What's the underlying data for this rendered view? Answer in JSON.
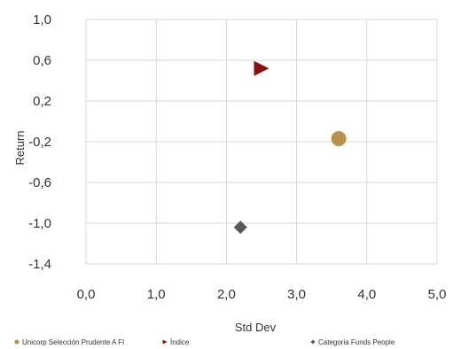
{
  "chart_data": {
    "type": "scatter",
    "xlabel": "Std Dev",
    "ylabel": "Return",
    "xlim": [
      0,
      5
    ],
    "ylim": [
      -1.4,
      1.0
    ],
    "x_ticks": [
      "0,0",
      "1,0",
      "2,0",
      "3,0",
      "4,0",
      "5,0"
    ],
    "x_tick_values": [
      0,
      1,
      2,
      3,
      4,
      5
    ],
    "y_ticks": [
      "1,0",
      "0,6",
      "0,2",
      "-0,2",
      "-0,6",
      "-1,0",
      "-1,4"
    ],
    "y_tick_values": [
      1.0,
      0.6,
      0.2,
      -0.2,
      -0.6,
      -1.0,
      -1.4
    ],
    "grid": true,
    "legend_position": "bottom",
    "series": [
      {
        "name": "Unicorp Selección Prudente A FI",
        "marker": "circle",
        "color": "#B8924A",
        "x": [
          3.6
        ],
        "y": [
          -0.17
        ]
      },
      {
        "name": "Índice",
        "marker": "triangle-right",
        "color": "#8B1010",
        "x": [
          2.5
        ],
        "y": [
          0.52
        ]
      },
      {
        "name": "Categoria Funds People",
        "marker": "diamond",
        "color": "#595959",
        "x": [
          2.2
        ],
        "y": [
          -1.04
        ]
      }
    ]
  }
}
